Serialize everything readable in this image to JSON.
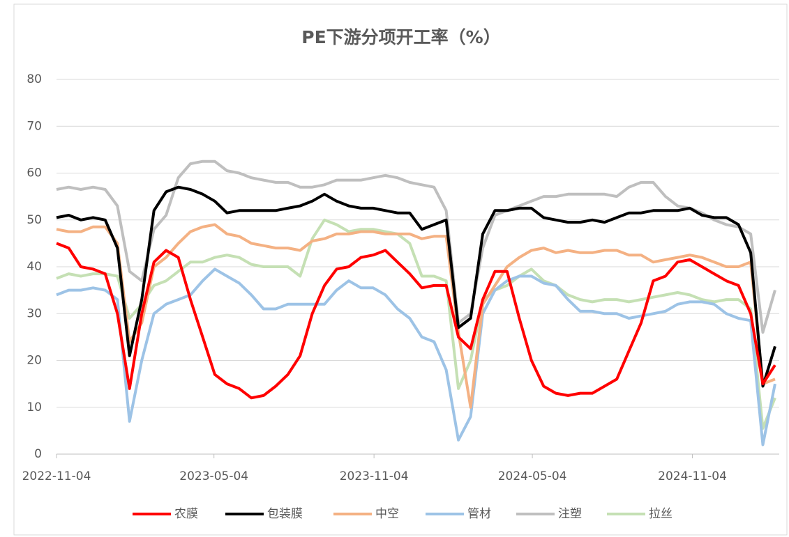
{
  "chart_data": {
    "type": "line",
    "title": "PE下游分项开工率（%）",
    "x": [
      "2022-11-04",
      "2022-11-18",
      "2022-12-02",
      "2022-12-16",
      "2022-12-30",
      "2023-01-13",
      "2023-01-27",
      "2023-02-10",
      "2023-02-24",
      "2023-03-10",
      "2023-03-24",
      "2023-04-07",
      "2023-04-21",
      "2023-05-05",
      "2023-05-19",
      "2023-06-02",
      "2023-06-16",
      "2023-06-30",
      "2023-07-14",
      "2023-07-28",
      "2023-08-11",
      "2023-08-25",
      "2023-09-08",
      "2023-09-22",
      "2023-10-06",
      "2023-10-20",
      "2023-11-03",
      "2023-11-17",
      "2023-12-01",
      "2023-12-15",
      "2023-12-29",
      "2024-01-12",
      "2024-01-26",
      "2024-02-09",
      "2024-02-23",
      "2024-03-08",
      "2024-03-22",
      "2024-04-05",
      "2024-04-19",
      "2024-05-03",
      "2024-05-17",
      "2024-05-31",
      "2024-06-14",
      "2024-06-28",
      "2024-07-12",
      "2024-07-26",
      "2024-08-09",
      "2024-08-23",
      "2024-09-06",
      "2024-09-20",
      "2024-10-04",
      "2024-10-18",
      "2024-11-01",
      "2024-11-15",
      "2024-11-29",
      "2024-12-13",
      "2024-12-27",
      "2025-01-10",
      "2025-01-24",
      "2025-02-07"
    ],
    "series": [
      {
        "name": "农膜",
        "color": "#ff0000",
        "values": [
          45,
          44,
          40,
          39.5,
          38.5,
          30,
          14,
          30,
          41,
          43.5,
          42,
          33,
          25,
          17,
          15,
          14,
          12,
          12.5,
          14.5,
          17,
          21,
          30,
          36,
          39.5,
          40,
          42,
          42.5,
          43.5,
          41,
          38.5,
          35.5,
          36,
          36,
          25,
          22.5,
          33,
          39,
          39,
          29,
          20,
          14.5,
          13,
          12.5,
          13,
          13,
          14.5,
          16,
          22,
          28,
          37,
          38,
          41,
          41.5,
          40,
          38.5,
          37,
          36,
          30,
          15,
          19
        ]
      },
      {
        "name": "包装膜",
        "color": "#000000",
        "values": [
          50.5,
          51,
          50,
          50.5,
          50,
          44,
          21,
          33,
          52,
          56,
          57,
          56.5,
          55.5,
          54,
          51.5,
          52,
          52,
          52,
          52,
          52.5,
          53,
          54,
          55.5,
          54,
          53,
          52.5,
          52.5,
          52,
          51.5,
          51.5,
          48,
          49,
          50,
          27,
          29,
          47,
          52,
          52,
          52.5,
          52.5,
          50.5,
          50,
          49.5,
          49.5,
          50,
          49.5,
          50.5,
          51.5,
          51.5,
          52,
          52,
          52,
          52.5,
          51,
          50.5,
          50.5,
          49,
          43,
          14.5,
          23
        ]
      },
      {
        "name": "中空",
        "color": "#f4b183",
        "values": [
          48,
          47.5,
          47.5,
          48.5,
          48.5,
          45,
          24,
          28,
          40,
          42,
          45,
          47.5,
          48.5,
          49,
          47,
          46.5,
          45,
          44.5,
          44,
          44,
          43.5,
          45.5,
          46,
          47,
          47,
          47.5,
          47.5,
          47,
          47,
          47,
          46,
          46.5,
          46.5,
          26,
          10,
          32,
          36,
          40,
          42,
          43.5,
          44,
          43,
          43.5,
          43,
          43,
          43.5,
          43.5,
          42.5,
          42.5,
          41,
          41.5,
          42,
          42.5,
          42,
          41,
          40,
          40,
          41,
          15,
          16
        ]
      },
      {
        "name": "管材",
        "color": "#9dc3e6",
        "values": [
          34,
          35,
          35,
          35.5,
          35,
          33,
          7,
          20,
          30,
          32,
          33,
          34,
          37,
          39.5,
          38,
          36.5,
          34,
          31,
          31,
          32,
          32,
          32,
          32,
          35,
          37,
          35.5,
          35.5,
          34,
          31,
          29,
          25,
          24,
          18,
          3,
          8,
          30,
          35,
          37,
          38,
          38,
          36.5,
          36,
          33,
          30.5,
          30.5,
          30,
          30,
          29,
          29.5,
          30,
          30.5,
          32,
          32.5,
          32.5,
          32,
          30,
          29,
          28.5,
          2,
          15
        ]
      },
      {
        "name": "注塑",
        "color": "#bfbfbf",
        "values": [
          56.5,
          57,
          56.5,
          57,
          56.5,
          53,
          39,
          37,
          48,
          51,
          59,
          62,
          62.5,
          62.5,
          60.5,
          60,
          59,
          58.5,
          58,
          58,
          57,
          57,
          57.5,
          58.5,
          58.5,
          58.5,
          59,
          59.5,
          59,
          58,
          57.5,
          57,
          52,
          28,
          30,
          44,
          51,
          52,
          53,
          54,
          55,
          55,
          55.5,
          55.5,
          55.5,
          55.5,
          55,
          57,
          58,
          58,
          55,
          53,
          52.5,
          51.5,
          50,
          49,
          48.5,
          47,
          26,
          35
        ]
      },
      {
        "name": "拉丝",
        "color": "#c5e0b4",
        "values": [
          37.5,
          38.5,
          38,
          38.5,
          38.5,
          38,
          29,
          32,
          36,
          37,
          39,
          41,
          41,
          42,
          42.5,
          42,
          40.5,
          40,
          40,
          40,
          38,
          46,
          50,
          49,
          47.5,
          48,
          48,
          47.5,
          47,
          45,
          38,
          38,
          37,
          14,
          20,
          33,
          35,
          36,
          38,
          39.5,
          37,
          36,
          34,
          33,
          32.5,
          33,
          33,
          32.5,
          33,
          33.5,
          34,
          34.5,
          34,
          33,
          32.5,
          33,
          33,
          31,
          5.5,
          12
        ]
      }
    ],
    "xlim": [
      "2022-11-04",
      "2025-02-07"
    ],
    "xticks": [
      "2022-11-04",
      "2023-05-04",
      "2023-11-04",
      "2024-05-04",
      "2024-11-04"
    ],
    "ylim": [
      0,
      80
    ],
    "yticks": [
      0,
      10,
      20,
      30,
      40,
      50,
      60,
      70,
      80
    ],
    "grid": true,
    "legend": "bottom"
  }
}
